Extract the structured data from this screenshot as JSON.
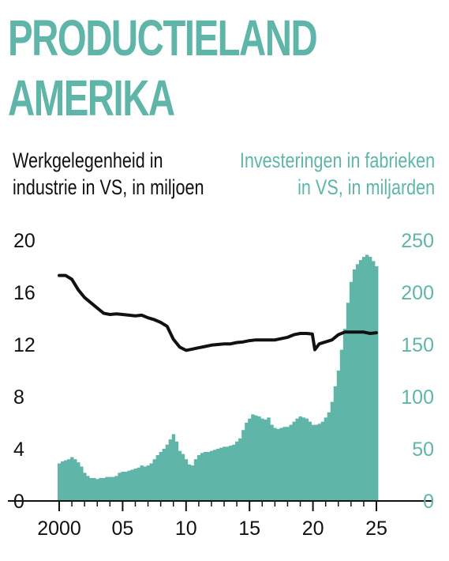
{
  "title_lines": [
    "PRODUCTIELAND",
    "AMERIKA"
  ],
  "left_axis_label": [
    "Werkgelegenheid in",
    "industrie in VS, in miljoen"
  ],
  "right_axis_label": [
    "Investeringen in fabrieken",
    "in VS, in miljarden"
  ],
  "colors": {
    "title": "#5fb5a8",
    "bars": "#5fb5a8",
    "line": "#111111",
    "axis_right_text": "#5fb5a8",
    "axis_left_text": "#111111"
  },
  "chart_data": {
    "type": "bar+line",
    "x_ticks": [
      "2000",
      "05",
      "10",
      "15",
      "20",
      "25"
    ],
    "x_tick_values": [
      2000,
      2005,
      2010,
      2015,
      2020,
      2025
    ],
    "left_axis": {
      "ticks": [
        "0",
        "4",
        "8",
        "12",
        "16",
        "20"
      ],
      "ylim": [
        0,
        20
      ]
    },
    "right_axis": {
      "ticks": [
        "0",
        "50",
        "100",
        "150",
        "200",
        "250"
      ],
      "ylim": [
        0,
        250
      ]
    },
    "series": [
      {
        "axis": "right",
        "type": "bar",
        "points": [
          [
            2000.0,
            36
          ],
          [
            2000.25,
            38
          ],
          [
            2000.5,
            39
          ],
          [
            2000.75,
            40
          ],
          [
            2001.0,
            42
          ],
          [
            2001.25,
            40
          ],
          [
            2001.5,
            37
          ],
          [
            2001.75,
            33
          ],
          [
            2002.0,
            27
          ],
          [
            2002.25,
            24
          ],
          [
            2002.5,
            22
          ],
          [
            2002.75,
            22
          ],
          [
            2003.0,
            21
          ],
          [
            2003.25,
            22
          ],
          [
            2003.5,
            22
          ],
          [
            2003.75,
            23
          ],
          [
            2004.0,
            23
          ],
          [
            2004.25,
            23
          ],
          [
            2004.5,
            24
          ],
          [
            2004.75,
            27
          ],
          [
            2005.0,
            28
          ],
          [
            2005.25,
            28
          ],
          [
            2005.5,
            29
          ],
          [
            2005.75,
            30
          ],
          [
            2006.0,
            31
          ],
          [
            2006.25,
            32
          ],
          [
            2006.5,
            34
          ],
          [
            2006.75,
            33
          ],
          [
            2007.0,
            34
          ],
          [
            2007.25,
            36
          ],
          [
            2007.5,
            40
          ],
          [
            2007.75,
            44
          ],
          [
            2008.0,
            47
          ],
          [
            2008.25,
            50
          ],
          [
            2008.5,
            54
          ],
          [
            2008.75,
            59
          ],
          [
            2009.0,
            64
          ],
          [
            2009.25,
            57
          ],
          [
            2009.5,
            48
          ],
          [
            2009.75,
            45
          ],
          [
            2010.0,
            40
          ],
          [
            2010.25,
            35
          ],
          [
            2010.5,
            34
          ],
          [
            2010.75,
            40
          ],
          [
            2011.0,
            44
          ],
          [
            2011.25,
            46
          ],
          [
            2011.5,
            47
          ],
          [
            2011.75,
            47
          ],
          [
            2012.0,
            48
          ],
          [
            2012.25,
            49
          ],
          [
            2012.5,
            50
          ],
          [
            2012.75,
            51
          ],
          [
            2013.0,
            52
          ],
          [
            2013.25,
            52
          ],
          [
            2013.5,
            53
          ],
          [
            2013.75,
            54
          ],
          [
            2014.0,
            57
          ],
          [
            2014.25,
            60
          ],
          [
            2014.5,
            68
          ],
          [
            2014.75,
            75
          ],
          [
            2015.0,
            79
          ],
          [
            2015.25,
            83
          ],
          [
            2015.5,
            82
          ],
          [
            2015.75,
            81
          ],
          [
            2016.0,
            79
          ],
          [
            2016.25,
            78
          ],
          [
            2016.5,
            80
          ],
          [
            2016.75,
            73
          ],
          [
            2017.0,
            70
          ],
          [
            2017.25,
            69
          ],
          [
            2017.5,
            70
          ],
          [
            2017.75,
            71
          ],
          [
            2018.0,
            71
          ],
          [
            2018.25,
            73
          ],
          [
            2018.5,
            76
          ],
          [
            2018.75,
            79
          ],
          [
            2019.0,
            81
          ],
          [
            2019.25,
            80
          ],
          [
            2019.5,
            79
          ],
          [
            2019.75,
            76
          ],
          [
            2020.0,
            73
          ],
          [
            2020.25,
            73
          ],
          [
            2020.5,
            74
          ],
          [
            2020.75,
            76
          ],
          [
            2021.0,
            80
          ],
          [
            2021.25,
            85
          ],
          [
            2021.5,
            95
          ],
          [
            2021.75,
            110
          ],
          [
            2022.0,
            125
          ],
          [
            2022.25,
            145
          ],
          [
            2022.5,
            165
          ],
          [
            2022.75,
            190
          ],
          [
            2023.0,
            210
          ],
          [
            2023.25,
            222
          ],
          [
            2023.5,
            227
          ],
          [
            2023.75,
            231
          ],
          [
            2024.0,
            234
          ],
          [
            2024.25,
            236
          ],
          [
            2024.5,
            234
          ],
          [
            2024.75,
            230
          ],
          [
            2025.0,
            225
          ]
        ]
      },
      {
        "axis": "left",
        "type": "line",
        "points": [
          [
            2000.0,
            17.3
          ],
          [
            2000.5,
            17.3
          ],
          [
            2001.0,
            17.0
          ],
          [
            2001.5,
            16.2
          ],
          [
            2002.0,
            15.6
          ],
          [
            2002.5,
            15.2
          ],
          [
            2003.0,
            14.8
          ],
          [
            2003.5,
            14.4
          ],
          [
            2004.0,
            14.3
          ],
          [
            2004.5,
            14.35
          ],
          [
            2005.0,
            14.3
          ],
          [
            2005.5,
            14.25
          ],
          [
            2006.0,
            14.2
          ],
          [
            2006.5,
            14.25
          ],
          [
            2007.0,
            14.05
          ],
          [
            2007.5,
            13.9
          ],
          [
            2008.0,
            13.7
          ],
          [
            2008.5,
            13.4
          ],
          [
            2009.0,
            12.4
          ],
          [
            2009.5,
            11.8
          ],
          [
            2010.0,
            11.55
          ],
          [
            2010.5,
            11.65
          ],
          [
            2011.0,
            11.75
          ],
          [
            2011.5,
            11.85
          ],
          [
            2012.0,
            11.95
          ],
          [
            2012.5,
            12.0
          ],
          [
            2013.0,
            12.05
          ],
          [
            2013.5,
            12.05
          ],
          [
            2014.0,
            12.15
          ],
          [
            2014.5,
            12.2
          ],
          [
            2015.0,
            12.3
          ],
          [
            2015.5,
            12.35
          ],
          [
            2016.0,
            12.35
          ],
          [
            2016.5,
            12.35
          ],
          [
            2017.0,
            12.35
          ],
          [
            2017.5,
            12.45
          ],
          [
            2018.0,
            12.55
          ],
          [
            2018.5,
            12.75
          ],
          [
            2019.0,
            12.85
          ],
          [
            2019.5,
            12.85
          ],
          [
            2019.95,
            12.8
          ],
          [
            2020.15,
            11.6
          ],
          [
            2020.5,
            12.05
          ],
          [
            2021.0,
            12.2
          ],
          [
            2021.5,
            12.35
          ],
          [
            2022.0,
            12.75
          ],
          [
            2022.5,
            12.95
          ],
          [
            2023.0,
            12.95
          ],
          [
            2023.5,
            12.95
          ],
          [
            2024.0,
            12.95
          ],
          [
            2024.5,
            12.85
          ],
          [
            2025.0,
            12.9
          ]
        ]
      }
    ]
  }
}
